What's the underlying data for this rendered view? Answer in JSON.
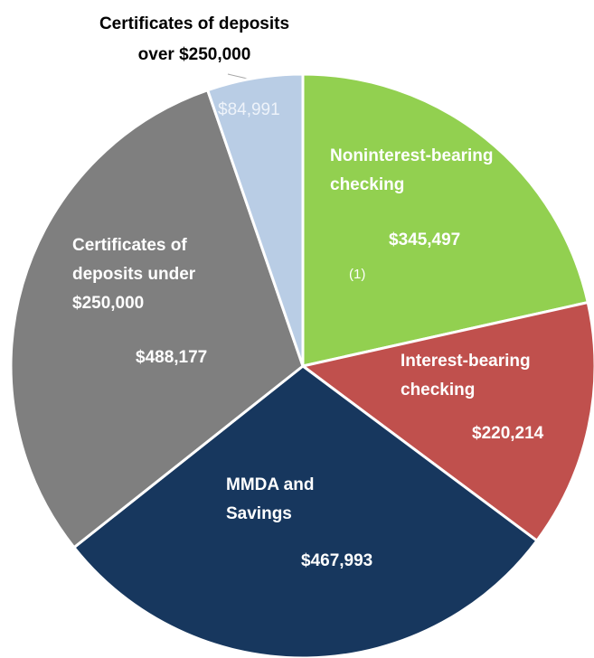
{
  "chart_data": {
    "type": "pie",
    "categories": [
      "Noninterest-bearing checking",
      "Interest-bearing checking",
      "MMDA and Savings",
      "Certificates of deposits under $250,000",
      "Certificates of deposits over $250,000"
    ],
    "values": [
      345497,
      220214,
      467993,
      488177,
      84991
    ],
    "value_labels": [
      "$345,497",
      "$220,214",
      "$467,993",
      "$488,177",
      "$84,991"
    ],
    "colors": [
      "#92d050",
      "#c0504d",
      "#17375e",
      "#7f7f7f",
      "#b9cde5"
    ],
    "annotation": "(1)"
  }
}
